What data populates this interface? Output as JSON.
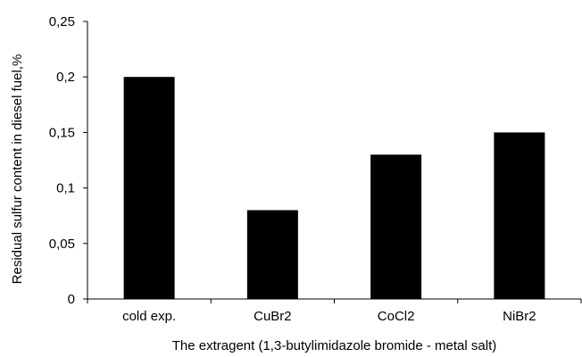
{
  "chart_data": {
    "type": "bar",
    "categories": [
      "cold exp.",
      "CuBr2",
      "CoCl2",
      "NiBr2"
    ],
    "values": [
      0.2,
      0.08,
      0.13,
      0.15
    ],
    "title": "",
    "xlabel": "The extragent (1,3-butylimidazole bromide - metal salt)",
    "ylabel": "Residual sulfur content in diesel fuel,%",
    "ylim": [
      0,
      0.25
    ],
    "yticks": [
      0,
      0.05,
      0.1,
      0.15,
      0.2,
      0.25
    ],
    "ytick_labels": [
      "0",
      "0,05",
      "0,1",
      "0,15",
      "0,2",
      "0,25"
    ],
    "grid": false,
    "legend": "none",
    "bar_color": "#000000"
  }
}
